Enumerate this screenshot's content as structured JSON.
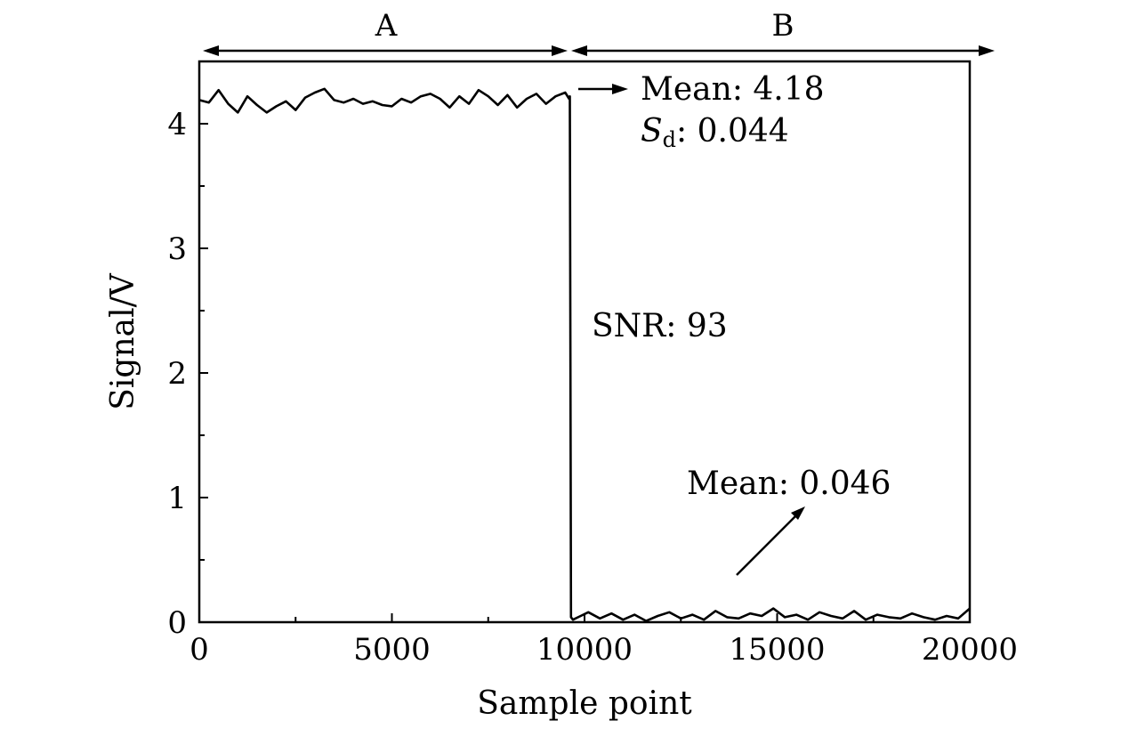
{
  "chart_data": {
    "type": "line",
    "xlabel": "Sample point",
    "ylabel": "Signal/V",
    "xlim": [
      0,
      20000
    ],
    "ylim": [
      0,
      4.5
    ],
    "xticks": [
      0,
      5000,
      10000,
      15000,
      20000
    ],
    "xtick_labels": [
      "0",
      "5000",
      "10000",
      "15000",
      "20000"
    ],
    "yticks": [
      0,
      1,
      2,
      3,
      4
    ],
    "ytick_labels": [
      "0",
      "1",
      "2",
      "3",
      "4"
    ],
    "transition_x": 9650,
    "regions": [
      {
        "label": "A",
        "x_start": 0,
        "x_end": 9650
      },
      {
        "label": "B",
        "x_start": 9650,
        "x_end": 20600
      }
    ],
    "series": [
      {
        "name": "Signal",
        "x": [
          0,
          250,
          500,
          750,
          1000,
          1250,
          1500,
          1750,
          2000,
          2250,
          2500,
          2750,
          3000,
          3250,
          3500,
          3750,
          4000,
          4250,
          4500,
          4750,
          5000,
          5250,
          5500,
          5750,
          6000,
          6250,
          6500,
          6750,
          7000,
          7250,
          7500,
          7750,
          8000,
          8250,
          8500,
          8750,
          9000,
          9250,
          9500,
          9600,
          9620,
          9650,
          9700,
          9900,
          10100,
          10400,
          10700,
          11000,
          11300,
          11600,
          11900,
          12200,
          12500,
          12800,
          13100,
          13400,
          13700,
          14000,
          14300,
          14600,
          14900,
          15200,
          15500,
          15800,
          16100,
          16400,
          16700,
          17000,
          17300,
          17600,
          17900,
          18200,
          18500,
          18800,
          19100,
          19400,
          19700,
          20000
        ],
        "values": [
          4.19,
          4.17,
          4.27,
          4.16,
          4.09,
          4.22,
          4.15,
          4.09,
          4.14,
          4.18,
          4.11,
          4.21,
          4.25,
          4.28,
          4.19,
          4.17,
          4.2,
          4.16,
          4.18,
          4.15,
          4.14,
          4.2,
          4.17,
          4.22,
          4.24,
          4.2,
          4.13,
          4.22,
          4.16,
          4.27,
          4.22,
          4.15,
          4.23,
          4.13,
          4.2,
          4.24,
          4.16,
          4.22,
          4.25,
          4.2,
          4.22,
          0.04,
          0.02,
          0.05,
          0.08,
          0.03,
          0.07,
          0.02,
          0.06,
          0.01,
          0.05,
          0.08,
          0.03,
          0.06,
          0.02,
          0.09,
          0.04,
          0.03,
          0.07,
          0.05,
          0.11,
          0.04,
          0.06,
          0.02,
          0.08,
          0.05,
          0.03,
          0.09,
          0.02,
          0.06,
          0.04,
          0.03,
          0.07,
          0.04,
          0.02,
          0.05,
          0.03,
          0.11
        ]
      }
    ],
    "annotations": {
      "mean_a": "Mean: 4.18",
      "sd_symbol": "S",
      "sd_subscript": "d",
      "sd_value": ": 0.044",
      "snr": "SNR: 93",
      "mean_b": "Mean: 0.046"
    }
  }
}
